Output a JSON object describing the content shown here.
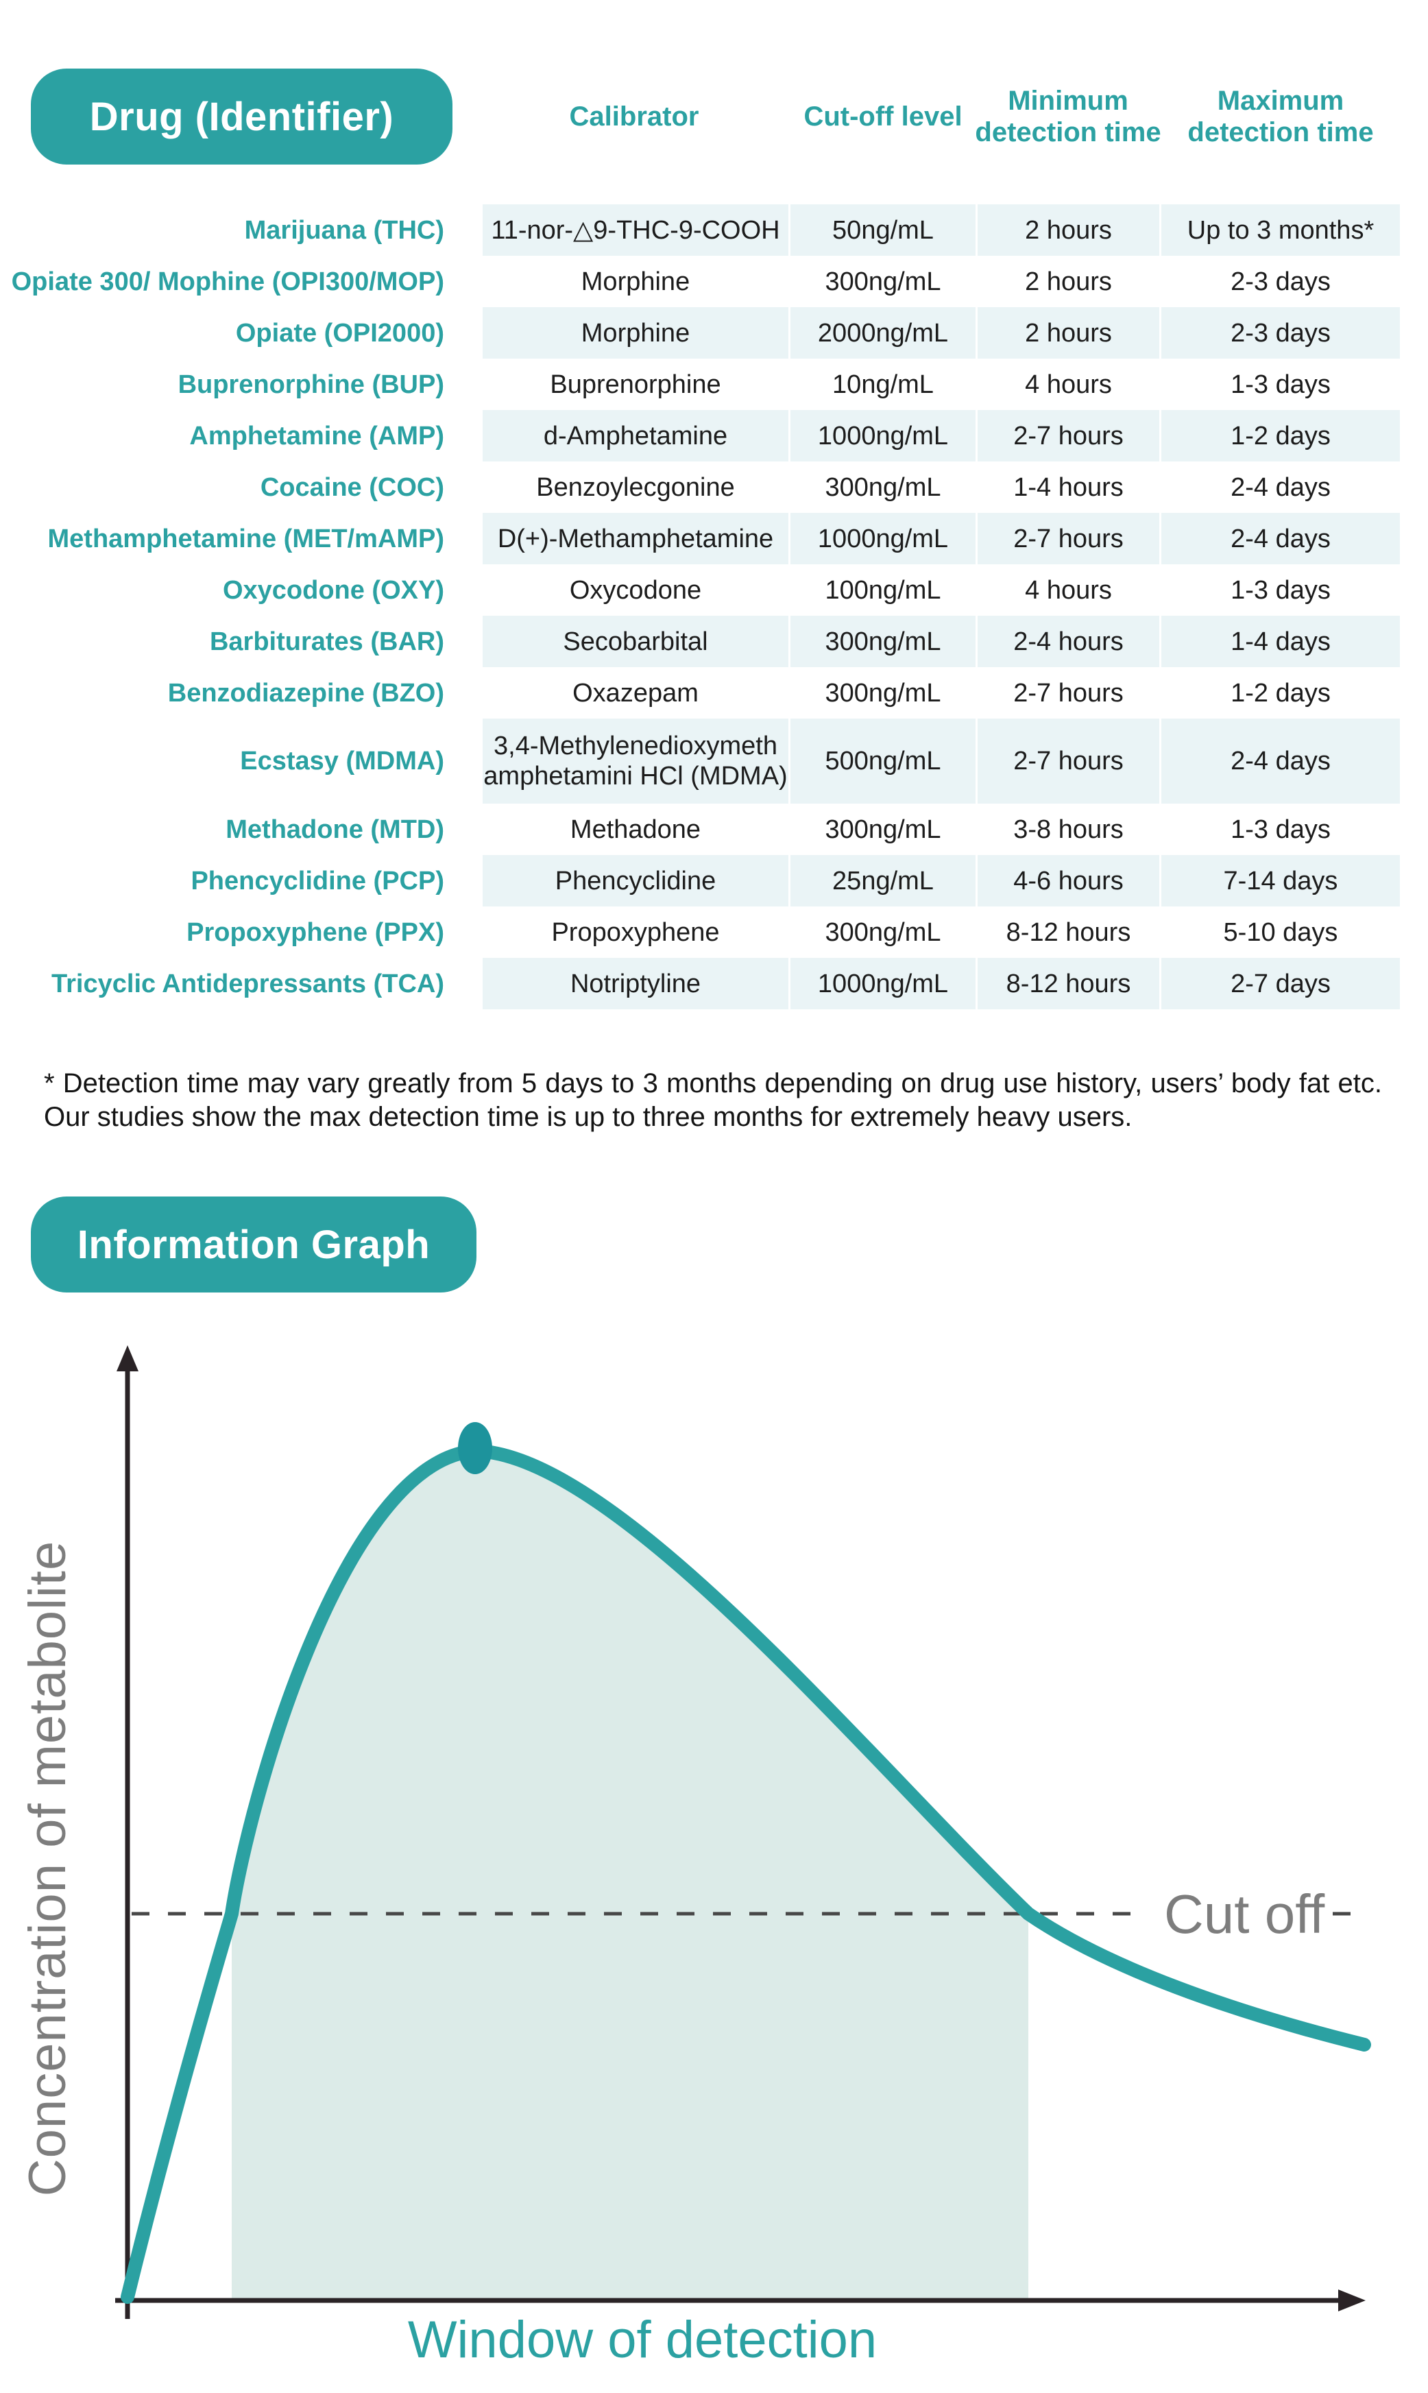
{
  "colors": {
    "accent": "#2ba1a2",
    "peak_dot": "#1d939c",
    "light_row": "#eaf4f6",
    "graph_shade": "#dcebe8",
    "gray_text": "#7d7d7d",
    "axis": "#2a2326",
    "dash": "#474747",
    "body_text": "#1c1c1c"
  },
  "table": {
    "corner_badge": "Drug (Identifier)",
    "headers": {
      "calibrator": "Calibrator",
      "cutoff": "Cut-off level",
      "min_line1": "Minimum",
      "min_line2": "detection time",
      "max_line1": "Maximum",
      "max_line2": "detection time"
    },
    "rows": [
      {
        "drug": "Marijuana (THC)",
        "calibrator": "11-nor-△9-THC-9-COOH",
        "cutoff": "50ng/mL",
        "min_detection": "2 hours",
        "max_detection": "Up to 3 months*"
      },
      {
        "drug": "Opiate 300/ Mophine (OPI300/MOP)",
        "calibrator": "Morphine",
        "cutoff": "300ng/mL",
        "min_detection": "2 hours",
        "max_detection": "2-3 days"
      },
      {
        "drug": "Opiate (OPI2000)",
        "calibrator": "Morphine",
        "cutoff": "2000ng/mL",
        "min_detection": "2 hours",
        "max_detection": "2-3 days"
      },
      {
        "drug": "Buprenorphine (BUP)",
        "calibrator": "Buprenorphine",
        "cutoff": "10ng/mL",
        "min_detection": "4 hours",
        "max_detection": "1-3 days"
      },
      {
        "drug": "Amphetamine (AMP)",
        "calibrator": "d-Amphetamine",
        "cutoff": "1000ng/mL",
        "min_detection": "2-7 hours",
        "max_detection": "1-2 days"
      },
      {
        "drug": "Cocaine (COC)",
        "calibrator": "Benzoylecgonine",
        "cutoff": "300ng/mL",
        "min_detection": "1-4 hours",
        "max_detection": "2-4 days"
      },
      {
        "drug": "Methamphetamine (MET/mAMP)",
        "calibrator": "D(+)-Methamphetamine",
        "cutoff": "1000ng/mL",
        "min_detection": "2-7 hours",
        "max_detection": "2-4 days"
      },
      {
        "drug": "Oxycodone (OXY)",
        "calibrator": "Oxycodone",
        "cutoff": "100ng/mL",
        "min_detection": "4 hours",
        "max_detection": "1-3 days"
      },
      {
        "drug": "Barbiturates (BAR)",
        "calibrator": "Secobarbital",
        "cutoff": "300ng/mL",
        "min_detection": "2-4 hours",
        "max_detection": "1-4 days"
      },
      {
        "drug": "Benzodiazepine (BZO)",
        "calibrator": "Oxazepam",
        "cutoff": "300ng/mL",
        "min_detection": "2-7 hours",
        "max_detection": "1-2 days"
      },
      {
        "drug": "Ecstasy (MDMA)",
        "calibrator": "3,4-Methylenedioxymeth amphetamini HCl (MDMA)",
        "cutoff": "500ng/mL",
        "min_detection": "2-7 hours",
        "max_detection": "2-4 days"
      },
      {
        "drug": "Methadone (MTD)",
        "calibrator": "Methadone",
        "cutoff": "300ng/mL",
        "min_detection": "3-8 hours",
        "max_detection": "1-3 days"
      },
      {
        "drug": "Phencyclidine (PCP)",
        "calibrator": "Phencyclidine",
        "cutoff": "25ng/mL",
        "min_detection": "4-6 hours",
        "max_detection": "7-14 days"
      },
      {
        "drug": "Propoxyphene (PPX)",
        "calibrator": "Propoxyphene",
        "cutoff": "300ng/mL",
        "min_detection": "8-12 hours",
        "max_detection": "5-10 days"
      },
      {
        "drug": "Tricyclic Antidepressants (TCA)",
        "calibrator": "Notriptyline",
        "cutoff": "1000ng/mL",
        "min_detection": "8-12 hours",
        "max_detection": "2-7 days"
      }
    ]
  },
  "footnote": "* Detection time may vary greatly from 5 days to 3 months depending on drug use history, users’ body fat etc. Our studies show the max detection time is up to three months for extremely heavy users.",
  "graph": {
    "badge": "Information Graph",
    "type": "area",
    "y_axis_label": "Concentration of metabolite",
    "x_axis_label": "Window of detection",
    "cutoff_label": "Cut off"
  }
}
